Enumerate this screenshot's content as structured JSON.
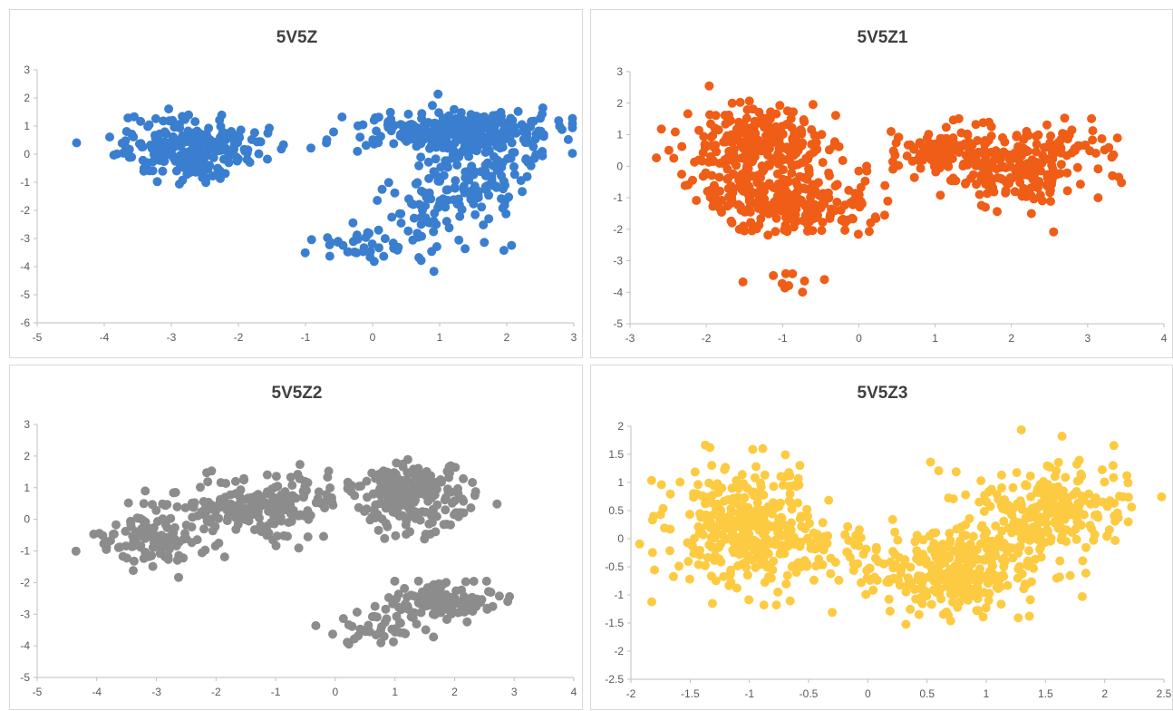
{
  "chart_data": [
    {
      "type": "scatter",
      "title": "5V5Z",
      "color": "#3a7ecf",
      "xlim": [
        -5,
        3
      ],
      "ylim": [
        -6,
        3
      ],
      "xticks": [
        "-5",
        "-4",
        "-3",
        "-2",
        "-1",
        "0",
        "1",
        "2",
        "3"
      ],
      "yticks": [
        "-6",
        "-5",
        "-4",
        "-3",
        "-2",
        "-1",
        "0",
        "1",
        "2",
        "3"
      ],
      "clusters": [
        {
          "cx": -2.7,
          "cy": 0.2,
          "sx": 0.55,
          "sy": 0.5,
          "n": 260,
          "seed": 11
        },
        {
          "cx": 1.4,
          "cy": 0.8,
          "sx": 0.7,
          "sy": 0.35,
          "n": 280,
          "seed": 12
        },
        {
          "cx": 1.5,
          "cy": -0.8,
          "sx": 0.45,
          "sy": 0.9,
          "n": 130,
          "seed": 13
        },
        {
          "cx": 0.0,
          "cy": -3.3,
          "sx": 0.5,
          "sy": 0.35,
          "n": 45,
          "seed": 14
        },
        {
          "cx": 0.8,
          "cy": -2.0,
          "sx": 0.5,
          "sy": 0.6,
          "n": 45,
          "seed": 15
        }
      ]
    },
    {
      "type": "scatter",
      "title": "5V5Z1",
      "color": "#ef5d16",
      "xlim": [
        -3,
        4
      ],
      "ylim": [
        -5,
        3
      ],
      "xticks": [
        "-3",
        "-2",
        "-1",
        "0",
        "1",
        "2",
        "3",
        "4"
      ],
      "yticks": [
        "-5",
        "-4",
        "-3",
        "-2",
        "-1",
        "0",
        "1",
        "2",
        "3"
      ],
      "clusters": [
        {
          "cx": -1.2,
          "cy": 0.7,
          "sx": 0.45,
          "sy": 0.55,
          "n": 210,
          "seed": 21
        },
        {
          "cx": -1.0,
          "cy": -1.2,
          "sx": 0.5,
          "sy": 0.45,
          "n": 230,
          "seed": 22
        },
        {
          "cx": -1.8,
          "cy": 0.2,
          "sx": 0.3,
          "sy": 0.8,
          "n": 70,
          "seed": 23
        },
        {
          "cx": 1.2,
          "cy": 0.5,
          "sx": 0.4,
          "sy": 0.4,
          "n": 130,
          "seed": 24
        },
        {
          "cx": 2.1,
          "cy": -0.4,
          "sx": 0.45,
          "sy": 0.6,
          "n": 140,
          "seed": 25
        },
        {
          "cx": 2.6,
          "cy": 0.5,
          "sx": 0.4,
          "sy": 0.4,
          "n": 60,
          "seed": 26
        },
        {
          "cx": -0.9,
          "cy": -3.7,
          "sx": 0.3,
          "sy": 0.25,
          "n": 10,
          "seed": 27
        }
      ]
    },
    {
      "type": "scatter",
      "title": "5V5Z2",
      "color": "#8c8c8c",
      "xlim": [
        -5,
        4
      ],
      "ylim": [
        -5,
        3
      ],
      "xticks": [
        "-5",
        "-4",
        "-3",
        "-2",
        "-1",
        "0",
        "1",
        "2",
        "3",
        "4"
      ],
      "yticks": [
        "-5",
        "-4",
        "-3",
        "-2",
        "-1",
        "0",
        "1",
        "2",
        "3"
      ],
      "clusters": [
        {
          "cx": -3.0,
          "cy": -0.6,
          "sx": 0.45,
          "sy": 0.45,
          "n": 110,
          "seed": 31
        },
        {
          "cx": -1.5,
          "cy": 0.3,
          "sx": 0.55,
          "sy": 0.4,
          "n": 170,
          "seed": 32
        },
        {
          "cx": -0.4,
          "cy": 0.8,
          "sx": 0.4,
          "sy": 0.3,
          "n": 40,
          "seed": 33
        },
        {
          "cx": 1.2,
          "cy": 1.0,
          "sx": 0.45,
          "sy": 0.35,
          "n": 160,
          "seed": 34
        },
        {
          "cx": 1.3,
          "cy": 0.1,
          "sx": 0.5,
          "sy": 0.35,
          "n": 70,
          "seed": 35
        },
        {
          "cx": 1.8,
          "cy": -2.6,
          "sx": 0.45,
          "sy": 0.3,
          "n": 120,
          "seed": 36
        },
        {
          "cx": 0.7,
          "cy": -3.3,
          "sx": 0.4,
          "sy": 0.3,
          "n": 40,
          "seed": 37
        }
      ]
    },
    {
      "type": "scatter",
      "title": "5V5Z3",
      "color": "#fdcb41",
      "xlim": [
        -2,
        2.5
      ],
      "ylim": [
        -2.5,
        2
      ],
      "xticks": [
        "-2",
        "-1.5",
        "-1",
        "-0.5",
        "0",
        "0.5",
        "1",
        "1.5",
        "2",
        "2.5"
      ],
      "yticks": [
        "-2.5",
        "-2",
        "-1.5",
        "-1",
        "-0.5",
        "0",
        "0.5",
        "1",
        "1.5",
        "2"
      ],
      "clusters": [
        {
          "cx": -1.05,
          "cy": 0.2,
          "sx": 0.3,
          "sy": 0.55,
          "n": 330,
          "seed": 41
        },
        {
          "cx": -0.35,
          "cy": -0.2,
          "sx": 0.3,
          "sy": 0.3,
          "n": 70,
          "seed": 42
        },
        {
          "cx": 0.75,
          "cy": -0.6,
          "sx": 0.35,
          "sy": 0.35,
          "n": 260,
          "seed": 43
        },
        {
          "cx": 1.6,
          "cy": 0.6,
          "sx": 0.35,
          "sy": 0.4,
          "n": 200,
          "seed": 44
        },
        {
          "cx": 1.1,
          "cy": 0.0,
          "sx": 0.3,
          "sy": 0.35,
          "n": 60,
          "seed": 45
        }
      ]
    }
  ]
}
